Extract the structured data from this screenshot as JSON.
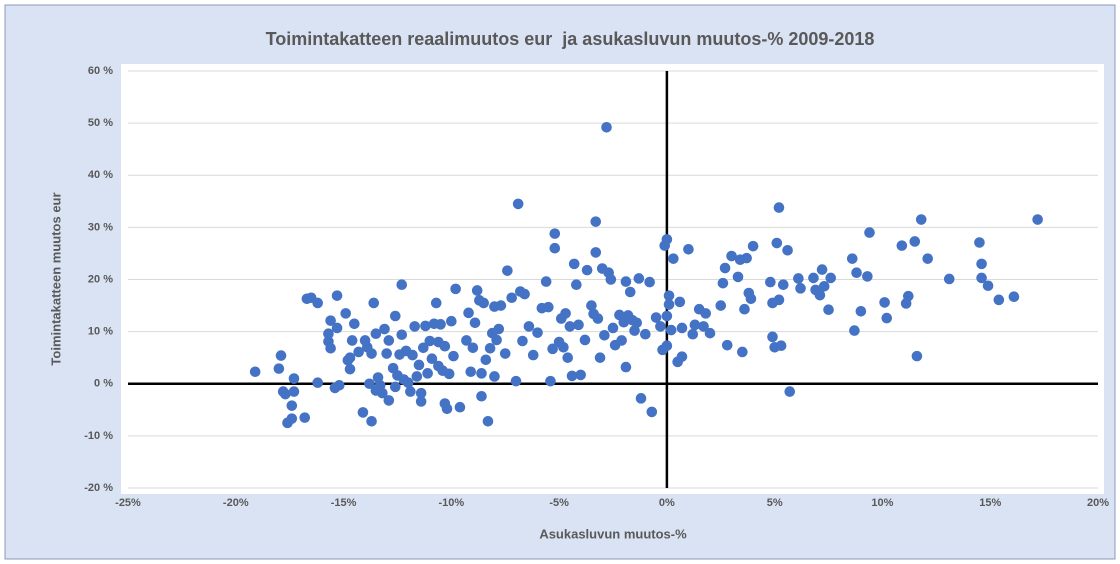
{
  "chart_data": {
    "type": "scatter",
    "title": "Toimintakatteen reaalimuutos eur  ja asukasluvun muutos-% 2009-2018",
    "xlabel": "Asukasluvun muutos-%",
    "ylabel": "Toimintakatteen muutos eur",
    "color": "#4472c4",
    "grid": true,
    "xlim": [
      -25,
      20
    ],
    "ylim": [
      -20,
      60
    ],
    "xticks": [
      {
        "value": -25,
        "label": "-25%"
      },
      {
        "value": -20,
        "label": "-20%"
      },
      {
        "value": -15,
        "label": "-15%"
      },
      {
        "value": -10,
        "label": "-10%"
      },
      {
        "value": -5,
        "label": "-5%"
      },
      {
        "value": 0,
        "label": "0%"
      },
      {
        "value": 5,
        "label": "5%"
      },
      {
        "value": 10,
        "label": "10%"
      },
      {
        "value": 15,
        "label": "15%"
      },
      {
        "value": 20,
        "label": "20%"
      }
    ],
    "yticks": [
      {
        "value": -20,
        "label": "-20 %"
      },
      {
        "value": -10,
        "label": "-10 %"
      },
      {
        "value": 0,
        "label": "0 %"
      },
      {
        "value": 10,
        "label": "10 %"
      },
      {
        "value": 20,
        "label": "20 %"
      },
      {
        "value": 30,
        "label": "30 %"
      },
      {
        "value": 40,
        "label": "40 %"
      },
      {
        "value": 50,
        "label": "50 %"
      },
      {
        "value": 60,
        "label": "60 %"
      }
    ],
    "x": [
      -19.1,
      -17.9,
      -18.0,
      -17.8,
      -17.7,
      -17.3,
      -17.3,
      -17.4,
      -17.6,
      -17.4,
      -16.8,
      -16.7,
      -16.5,
      -16.2,
      -16.2,
      -15.7,
      -15.6,
      -15.7,
      -15.6,
      -15.4,
      -15.3,
      -15.3,
      -15.2,
      -14.9,
      -14.8,
      -14.7,
      -14.7,
      -14.6,
      -14.5,
      -14.3,
      -14.1,
      -14.0,
      -13.9,
      -13.8,
      -13.7,
      -13.7,
      -13.6,
      -13.5,
      -13.5,
      -13.4,
      -13.3,
      -13.2,
      -13.1,
      -13.0,
      -12.9,
      -12.9,
      -12.7,
      -12.6,
      -12.6,
      -12.5,
      -12.4,
      -12.3,
      -12.3,
      -12.2,
      -12.1,
      -12.0,
      -11.9,
      -11.8,
      -11.7,
      -11.6,
      -11.5,
      -11.4,
      -11.4,
      -11.3,
      -11.2,
      -11.1,
      -11.0,
      -10.9,
      -10.8,
      -10.7,
      -10.6,
      -10.6,
      -10.5,
      -10.4,
      -10.3,
      -10.3,
      -10.2,
      -10.1,
      -10.0,
      -9.9,
      -9.8,
      -9.6,
      -9.3,
      -9.2,
      -9.1,
      -9.0,
      -8.9,
      -8.8,
      -8.7,
      -8.6,
      -8.6,
      -8.5,
      -8.4,
      -8.3,
      -8.2,
      -8.1,
      -8.0,
      -8.0,
      -7.9,
      -7.8,
      -7.7,
      -7.5,
      -7.4,
      -7.2,
      -7.0,
      -6.9,
      -6.8,
      -6.7,
      -6.6,
      -6.4,
      -6.2,
      -6.0,
      -5.8,
      -5.6,
      -5.5,
      -5.4,
      -5.3,
      -5.2,
      -5.2,
      -5.0,
      -4.9,
      -4.8,
      -4.7,
      -4.6,
      -4.5,
      -4.4,
      -4.3,
      -4.2,
      -4.1,
      -4.0,
      -3.8,
      -3.7,
      -3.5,
      -3.4,
      -3.3,
      -3.3,
      -3.2,
      -3.1,
      -3.0,
      -2.9,
      -2.8,
      -2.7,
      -2.6,
      -2.5,
      -2.4,
      -2.2,
      -2.1,
      -2.0,
      -1.9,
      -1.9,
      -1.8,
      -1.7,
      -1.6,
      -1.5,
      -1.4,
      -1.3,
      -1.2,
      -1.0,
      -0.8,
      -0.7,
      -0.5,
      -0.3,
      -0.2,
      -0.1,
      0.0,
      0.0,
      0.0,
      0.1,
      0.1,
      0.2,
      0.3,
      0.5,
      0.6,
      0.7,
      0.7,
      1.0,
      1.2,
      1.3,
      1.5,
      1.7,
      1.8,
      2.0,
      2.5,
      2.6,
      2.7,
      2.8,
      3.0,
      3.3,
      3.4,
      3.5,
      3.6,
      3.7,
      3.8,
      3.9,
      4.0,
      4.8,
      4.9,
      4.9,
      5.0,
      5.1,
      5.2,
      5.2,
      5.3,
      5.4,
      5.6,
      5.7,
      6.1,
      6.2,
      6.8,
      6.9,
      7.1,
      7.2,
      7.3,
      7.5,
      7.6,
      8.6,
      8.7,
      8.8,
      9.0,
      9.3,
      9.4,
      10.1,
      10.2,
      10.9,
      11.1,
      11.2,
      11.5,
      11.6,
      11.8,
      12.1,
      13.1,
      14.5,
      14.6,
      14.6,
      14.9,
      15.4,
      16.1,
      17.2
    ],
    "values": [
      2.3,
      5.4,
      2.9,
      -1.5,
      -2.0,
      1.0,
      -1.5,
      -4.2,
      -7.5,
      -6.7,
      -6.5,
      16.3,
      16.5,
      15.5,
      0.2,
      8.1,
      12.1,
      9.6,
      6.8,
      -0.8,
      16.9,
      10.7,
      -0.3,
      13.5,
      4.5,
      5.0,
      2.8,
      8.3,
      11.5,
      6.1,
      -5.5,
      8.3,
      7.0,
      0.0,
      -7.2,
      5.8,
      15.5,
      9.6,
      -1.3,
      1.2,
      -0.3,
      -1.8,
      10.5,
      5.8,
      -3.2,
      8.3,
      3.0,
      13.0,
      -0.6,
      1.6,
      5.6,
      9.4,
      19.0,
      0.8,
      6.3,
      0.2,
      -1.5,
      5.5,
      11.0,
      1.4,
      3.6,
      -3.4,
      -1.8,
      6.9,
      11.1,
      2.0,
      8.2,
      4.8,
      11.5,
      15.5,
      3.4,
      8.0,
      11.4,
      2.5,
      7.2,
      -3.8,
      -4.8,
      1.9,
      12.0,
      5.3,
      18.2,
      -4.5,
      8.3,
      13.6,
      2.3,
      6.9,
      11.7,
      17.9,
      16.0,
      -2.4,
      2.0,
      15.5,
      4.6,
      -7.2,
      6.8,
      9.7,
      14.8,
      1.4,
      8.4,
      10.5,
      15.0,
      5.8,
      21.7,
      16.5,
      0.5,
      34.5,
      17.7,
      8.2,
      17.2,
      11.0,
      5.5,
      9.8,
      14.5,
      19.6,
      14.7,
      0.5,
      6.7,
      28.8,
      26.0,
      8.0,
      12.5,
      7.0,
      13.5,
      5.0,
      11.0,
      1.5,
      23.0,
      19.0,
      11.3,
      1.7,
      8.4,
      21.8,
      15.0,
      13.4,
      31.1,
      25.2,
      12.5,
      5.0,
      22.1,
      9.3,
      49.2,
      21.3,
      20.0,
      10.7,
      7.4,
      13.2,
      8.3,
      11.8,
      19.6,
      3.2,
      13.1,
      17.6,
      12.2,
      10.2,
      11.7,
      20.2,
      -2.8,
      9.5,
      19.5,
      -5.4,
      12.7,
      11.0,
      6.5,
      26.5,
      27.7,
      7.3,
      13.0,
      16.9,
      15.2,
      10.3,
      24.0,
      4.2,
      15.7,
      5.2,
      10.7,
      25.8,
      9.5,
      11.3,
      14.3,
      11.0,
      13.5,
      9.7,
      15.0,
      19.3,
      22.2,
      7.4,
      24.5,
      20.5,
      23.8,
      6.1,
      14.3,
      24.1,
      17.4,
      16.3,
      26.4,
      19.5,
      15.5,
      9.0,
      7.0,
      27.0,
      33.8,
      16.1,
      7.3,
      19.0,
      25.6,
      -1.5,
      20.2,
      18.3,
      20.3,
      18.0,
      17.0,
      21.9,
      18.7,
      14.2,
      20.3,
      24.0,
      10.2,
      21.3,
      13.9,
      20.6,
      29.0,
      15.6,
      12.6,
      26.5,
      15.4,
      16.8,
      27.3,
      5.3,
      31.5,
      24.0,
      20.1,
      27.1,
      23.0,
      20.3,
      18.8,
      16.1,
      16.7,
      31.5
    ]
  }
}
